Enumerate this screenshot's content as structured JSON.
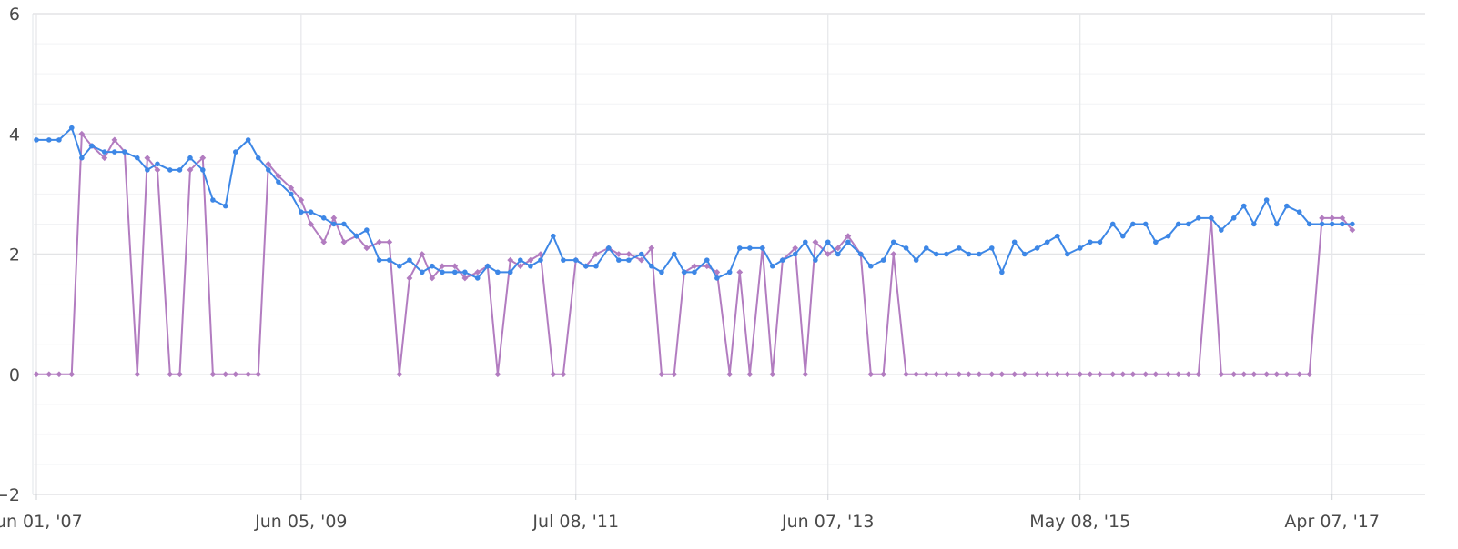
{
  "chart_data": {
    "type": "line",
    "title": "",
    "xlabel": "",
    "ylabel": "",
    "ylim": [
      -2,
      6
    ],
    "xlim": [
      "2007-06-01",
      "2017-11-01"
    ],
    "grid": true,
    "legend": "none",
    "y_ticks": [
      "−2",
      "0",
      "2",
      "4",
      "6"
    ],
    "x_ticks": [
      {
        "date": "2007-06-01",
        "label": "Jun 01, '07"
      },
      {
        "date": "2009-06-05",
        "label": "Jun 05, '09"
      },
      {
        "date": "2011-07-08",
        "label": "Jul 08, '11"
      },
      {
        "date": "2013-06-07",
        "label": "Jun 07, '13"
      },
      {
        "date": "2015-05-08",
        "label": "May 08, '15"
      },
      {
        "date": "2017-04-07",
        "label": "Apr 07, '17"
      }
    ],
    "series": [
      {
        "color": "#3d87e6",
        "marker": "circle",
        "points": [
          [
            "2007-06-01",
            3.9
          ],
          [
            "2007-07-06",
            3.9
          ],
          [
            "2007-08-03",
            3.9
          ],
          [
            "2007-09-07",
            4.1
          ],
          [
            "2007-10-05",
            3.6
          ],
          [
            "2007-11-02",
            3.8
          ],
          [
            "2007-12-07",
            3.7
          ],
          [
            "2008-01-04",
            3.7
          ],
          [
            "2008-02-01",
            3.7
          ],
          [
            "2008-03-07",
            3.6
          ],
          [
            "2008-04-04",
            3.4
          ],
          [
            "2008-05-02",
            3.5
          ],
          [
            "2008-06-06",
            3.4
          ],
          [
            "2008-07-03",
            3.4
          ],
          [
            "2008-08-01",
            3.6
          ],
          [
            "2008-09-05",
            3.4
          ],
          [
            "2008-10-03",
            2.9
          ],
          [
            "2008-11-07",
            2.8
          ],
          [
            "2008-12-05",
            3.7
          ],
          [
            "2009-01-09",
            3.9
          ],
          [
            "2009-02-06",
            3.6
          ],
          [
            "2009-03-06",
            3.4
          ],
          [
            "2009-04-03",
            3.2
          ],
          [
            "2009-05-08",
            3.0
          ],
          [
            "2009-06-05",
            2.7
          ],
          [
            "2009-07-02",
            2.7
          ],
          [
            "2009-08-07",
            2.6
          ],
          [
            "2009-09-04",
            2.5
          ],
          [
            "2009-10-02",
            2.5
          ],
          [
            "2009-11-06",
            2.3
          ],
          [
            "2009-12-04",
            2.4
          ],
          [
            "2010-01-08",
            1.9
          ],
          [
            "2010-02-05",
            1.9
          ],
          [
            "2010-03-05",
            1.8
          ],
          [
            "2010-04-02",
            1.9
          ],
          [
            "2010-05-07",
            1.7
          ],
          [
            "2010-06-04",
            1.8
          ],
          [
            "2010-07-02",
            1.7
          ],
          [
            "2010-08-06",
            1.7
          ],
          [
            "2010-09-03",
            1.7
          ],
          [
            "2010-10-08",
            1.6
          ],
          [
            "2010-11-05",
            1.8
          ],
          [
            "2010-12-03",
            1.7
          ],
          [
            "2011-01-07",
            1.7
          ],
          [
            "2011-02-04",
            1.9
          ],
          [
            "2011-03-04",
            1.8
          ],
          [
            "2011-04-01",
            1.9
          ],
          [
            "2011-05-06",
            2.3
          ],
          [
            "2011-06-03",
            1.9
          ],
          [
            "2011-07-08",
            1.9
          ],
          [
            "2011-08-05",
            1.8
          ],
          [
            "2011-09-02",
            1.8
          ],
          [
            "2011-10-07",
            2.1
          ],
          [
            "2011-11-04",
            1.9
          ],
          [
            "2011-12-02",
            1.9
          ],
          [
            "2012-01-06",
            2.0
          ],
          [
            "2012-02-03",
            1.8
          ],
          [
            "2012-03-02",
            1.7
          ],
          [
            "2012-04-06",
            2.0
          ],
          [
            "2012-05-04",
            1.7
          ],
          [
            "2012-06-01",
            1.7
          ],
          [
            "2012-07-06",
            1.9
          ],
          [
            "2012-08-03",
            1.6
          ],
          [
            "2012-09-07",
            1.7
          ],
          [
            "2012-10-05",
            2.1
          ],
          [
            "2012-11-02",
            2.1
          ],
          [
            "2012-12-07",
            2.1
          ],
          [
            "2013-01-04",
            1.8
          ],
          [
            "2013-02-01",
            1.9
          ],
          [
            "2013-03-08",
            2.0
          ],
          [
            "2013-04-05",
            2.2
          ],
          [
            "2013-05-03",
            1.9
          ],
          [
            "2013-06-07",
            2.2
          ],
          [
            "2013-07-05",
            2.0
          ],
          [
            "2013-08-02",
            2.2
          ],
          [
            "2013-09-06",
            2.0
          ],
          [
            "2013-10-04",
            1.8
          ],
          [
            "2013-11-08",
            1.9
          ],
          [
            "2013-12-06",
            2.2
          ],
          [
            "2014-01-10",
            2.1
          ],
          [
            "2014-02-07",
            1.9
          ],
          [
            "2014-03-07",
            2.1
          ],
          [
            "2014-04-04",
            2.0
          ],
          [
            "2014-05-02",
            2.0
          ],
          [
            "2014-06-06",
            2.1
          ],
          [
            "2014-07-03",
            2.0
          ],
          [
            "2014-08-01",
            2.0
          ],
          [
            "2014-09-05",
            2.1
          ],
          [
            "2014-10-03",
            1.7
          ],
          [
            "2014-11-07",
            2.2
          ],
          [
            "2014-12-05",
            2.0
          ],
          [
            "2015-01-09",
            2.1
          ],
          [
            "2015-02-06",
            2.2
          ],
          [
            "2015-03-06",
            2.3
          ],
          [
            "2015-04-03",
            2.0
          ],
          [
            "2015-05-08",
            2.1
          ],
          [
            "2015-06-05",
            2.2
          ],
          [
            "2015-07-02",
            2.2
          ],
          [
            "2015-08-07",
            2.5
          ],
          [
            "2015-09-04",
            2.3
          ],
          [
            "2015-10-02",
            2.5
          ],
          [
            "2015-11-06",
            2.5
          ],
          [
            "2015-12-04",
            2.2
          ],
          [
            "2016-01-08",
            2.3
          ],
          [
            "2016-02-05",
            2.5
          ],
          [
            "2016-03-04",
            2.5
          ],
          [
            "2016-04-01",
            2.6
          ],
          [
            "2016-05-06",
            2.6
          ],
          [
            "2016-06-03",
            2.4
          ],
          [
            "2016-07-08",
            2.6
          ],
          [
            "2016-08-05",
            2.8
          ],
          [
            "2016-09-02",
            2.5
          ],
          [
            "2016-10-07",
            2.9
          ],
          [
            "2016-11-04",
            2.5
          ],
          [
            "2016-12-02",
            2.8
          ],
          [
            "2017-01-06",
            2.7
          ],
          [
            "2017-02-03",
            2.5
          ],
          [
            "2017-03-10",
            2.5
          ],
          [
            "2017-04-07",
            2.5
          ],
          [
            "2017-05-05",
            2.5
          ],
          [
            "2017-06-02",
            2.5
          ]
        ]
      },
      {
        "color": "#b27cc0",
        "marker": "diamond",
        "points": [
          [
            "2007-06-01",
            0
          ],
          [
            "2007-07-06",
            0
          ],
          [
            "2007-08-03",
            0
          ],
          [
            "2007-09-07",
            0
          ],
          [
            "2007-10-05",
            4.0
          ],
          [
            "2007-11-02",
            3.8
          ],
          [
            "2007-12-07",
            3.6
          ],
          [
            "2008-01-04",
            3.9
          ],
          [
            "2008-02-01",
            3.7
          ],
          [
            "2008-03-07",
            0
          ],
          [
            "2008-04-04",
            3.6
          ],
          [
            "2008-05-02",
            3.4
          ],
          [
            "2008-06-06",
            0
          ],
          [
            "2008-07-03",
            0
          ],
          [
            "2008-08-01",
            3.4
          ],
          [
            "2008-09-05",
            3.6
          ],
          [
            "2008-10-03",
            0
          ],
          [
            "2008-11-07",
            0
          ],
          [
            "2008-12-05",
            0
          ],
          [
            "2009-01-09",
            0
          ],
          [
            "2009-02-06",
            0
          ],
          [
            "2009-03-06",
            3.5
          ],
          [
            "2009-04-03",
            3.3
          ],
          [
            "2009-05-08",
            3.1
          ],
          [
            "2009-06-05",
            2.9
          ],
          [
            "2009-07-02",
            2.5
          ],
          [
            "2009-08-07",
            2.2
          ],
          [
            "2009-09-04",
            2.6
          ],
          [
            "2009-10-02",
            2.2
          ],
          [
            "2009-11-06",
            2.3
          ],
          [
            "2009-12-04",
            2.1
          ],
          [
            "2010-01-08",
            2.2
          ],
          [
            "2010-02-05",
            2.2
          ],
          [
            "2010-03-05",
            0
          ],
          [
            "2010-04-02",
            1.6
          ],
          [
            "2010-05-07",
            2.0
          ],
          [
            "2010-06-04",
            1.6
          ],
          [
            "2010-07-02",
            1.8
          ],
          [
            "2010-08-06",
            1.8
          ],
          [
            "2010-09-03",
            1.6
          ],
          [
            "2010-10-08",
            1.7
          ],
          [
            "2010-11-05",
            1.8
          ],
          [
            "2010-12-03",
            0
          ],
          [
            "2011-01-07",
            1.9
          ],
          [
            "2011-02-04",
            1.8
          ],
          [
            "2011-03-04",
            1.9
          ],
          [
            "2011-04-01",
            2.0
          ],
          [
            "2011-05-06",
            0
          ],
          [
            "2011-06-03",
            0
          ],
          [
            "2011-07-08",
            1.9
          ],
          [
            "2011-08-05",
            1.8
          ],
          [
            "2011-09-02",
            2.0
          ],
          [
            "2011-10-07",
            2.1
          ],
          [
            "2011-11-04",
            2.0
          ],
          [
            "2011-12-02",
            2.0
          ],
          [
            "2012-01-06",
            1.9
          ],
          [
            "2012-02-03",
            2.1
          ],
          [
            "2012-03-02",
            0
          ],
          [
            "2012-04-06",
            0
          ],
          [
            "2012-05-04",
            1.7
          ],
          [
            "2012-06-01",
            1.8
          ],
          [
            "2012-07-06",
            1.8
          ],
          [
            "2012-08-03",
            1.7
          ],
          [
            "2012-09-07",
            0
          ],
          [
            "2012-10-05",
            1.7
          ],
          [
            "2012-11-02",
            0
          ],
          [
            "2012-12-07",
            2.1
          ],
          [
            "2013-01-04",
            0
          ],
          [
            "2013-02-01",
            1.9
          ],
          [
            "2013-03-08",
            2.1
          ],
          [
            "2013-04-05",
            0
          ],
          [
            "2013-05-03",
            2.2
          ],
          [
            "2013-06-07",
            2.0
          ],
          [
            "2013-07-05",
            2.1
          ],
          [
            "2013-08-02",
            2.3
          ],
          [
            "2013-09-06",
            2.0
          ],
          [
            "2013-10-04",
            0
          ],
          [
            "2013-11-08",
            0
          ],
          [
            "2013-12-06",
            2.0
          ],
          [
            "2014-01-10",
            0
          ],
          [
            "2014-02-07",
            0
          ],
          [
            "2014-03-07",
            0
          ],
          [
            "2014-04-04",
            0
          ],
          [
            "2014-05-02",
            0
          ],
          [
            "2014-06-06",
            0
          ],
          [
            "2014-07-03",
            0
          ],
          [
            "2014-08-01",
            0
          ],
          [
            "2014-09-05",
            0
          ],
          [
            "2014-10-03",
            0
          ],
          [
            "2014-11-07",
            0
          ],
          [
            "2014-12-05",
            0
          ],
          [
            "2015-01-09",
            0
          ],
          [
            "2015-02-06",
            0
          ],
          [
            "2015-03-06",
            0
          ],
          [
            "2015-04-03",
            0
          ],
          [
            "2015-05-08",
            0
          ],
          [
            "2015-06-05",
            0
          ],
          [
            "2015-07-02",
            0
          ],
          [
            "2015-08-07",
            0
          ],
          [
            "2015-09-04",
            0
          ],
          [
            "2015-10-02",
            0
          ],
          [
            "2015-11-06",
            0
          ],
          [
            "2015-12-04",
            0
          ],
          [
            "2016-01-08",
            0
          ],
          [
            "2016-02-05",
            0
          ],
          [
            "2016-03-04",
            0
          ],
          [
            "2016-04-01",
            0
          ],
          [
            "2016-05-06",
            2.6
          ],
          [
            "2016-06-03",
            0
          ],
          [
            "2016-07-08",
            0
          ],
          [
            "2016-08-05",
            0
          ],
          [
            "2016-09-02",
            0
          ],
          [
            "2016-10-07",
            0
          ],
          [
            "2016-11-04",
            0
          ],
          [
            "2016-12-02",
            0
          ],
          [
            "2017-01-06",
            0
          ],
          [
            "2017-02-03",
            0
          ],
          [
            "2017-03-10",
            2.6
          ],
          [
            "2017-04-07",
            2.6
          ],
          [
            "2017-05-05",
            2.6
          ],
          [
            "2017-06-02",
            2.4
          ]
        ]
      }
    ]
  }
}
